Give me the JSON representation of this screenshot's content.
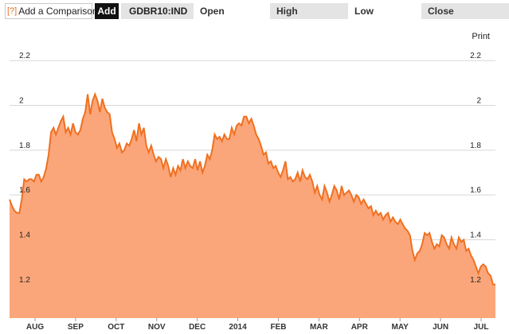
{
  "toolbar": {
    "help_glyph": "[?]",
    "comparison_label": "Add a Comparison",
    "add_label": "Add",
    "symbol": "GDBR10:IND",
    "open_label": "Open",
    "high_label": "High",
    "low_label": "Low",
    "close_label": "Close"
  },
  "print_label": "Print",
  "colors": {
    "line": "#f07020",
    "fill": "#fba67a",
    "grid": "#d8d8d8"
  },
  "chart_data": {
    "type": "area",
    "title": "",
    "xlabel": "",
    "ylabel": "",
    "ylim": [
      1.05,
      2.35
    ],
    "yticks": [
      "1.2",
      "1.4",
      "1.6",
      "1.8",
      "2",
      "2.2"
    ],
    "xticks": [
      "AUG",
      "SEP",
      "OCT",
      "NOV",
      "DEC",
      "2014",
      "FEB",
      "MAR",
      "APR",
      "MAY",
      "JUN",
      "JUL"
    ],
    "series": [
      {
        "values": [
          1.58,
          1.55,
          1.53,
          1.52,
          1.52,
          1.58,
          1.67,
          1.66,
          1.67,
          1.67,
          1.66,
          1.69,
          1.69,
          1.66,
          1.68,
          1.72,
          1.78,
          1.88,
          1.9,
          1.87,
          1.9,
          1.93,
          1.95,
          1.88,
          1.9,
          1.87,
          1.92,
          1.88,
          1.87,
          1.89,
          1.94,
          1.97,
          2.05,
          1.96,
          2.02,
          2.05,
          2.02,
          1.97,
          2.03,
          1.99,
          1.97,
          1.96,
          1.88,
          1.85,
          1.81,
          1.83,
          1.79,
          1.8,
          1.83,
          1.82,
          1.85,
          1.89,
          1.84,
          1.92,
          1.87,
          1.9,
          1.82,
          1.79,
          1.82,
          1.78,
          1.75,
          1.77,
          1.76,
          1.72,
          1.76,
          1.73,
          1.68,
          1.72,
          1.69,
          1.73,
          1.71,
          1.76,
          1.72,
          1.75,
          1.73,
          1.72,
          1.76,
          1.71,
          1.75,
          1.7,
          1.73,
          1.78,
          1.76,
          1.8,
          1.87,
          1.85,
          1.86,
          1.84,
          1.87,
          1.85,
          1.85,
          1.9,
          1.87,
          1.91,
          1.92,
          1.91,
          1.95,
          1.95,
          1.92,
          1.94,
          1.91,
          1.87,
          1.85,
          1.82,
          1.78,
          1.79,
          1.74,
          1.75,
          1.72,
          1.73,
          1.7,
          1.68,
          1.71,
          1.75,
          1.67,
          1.68,
          1.66,
          1.67,
          1.7,
          1.66,
          1.71,
          1.68,
          1.67,
          1.69,
          1.66,
          1.61,
          1.64,
          1.6,
          1.58,
          1.64,
          1.61,
          1.57,
          1.6,
          1.64,
          1.62,
          1.58,
          1.64,
          1.6,
          1.61,
          1.62,
          1.6,
          1.57,
          1.6,
          1.59,
          1.56,
          1.58,
          1.56,
          1.54,
          1.55,
          1.51,
          1.53,
          1.51,
          1.52,
          1.49,
          1.51,
          1.52,
          1.48,
          1.5,
          1.48,
          1.47,
          1.49,
          1.47,
          1.45,
          1.44,
          1.42,
          1.35,
          1.31,
          1.34,
          1.35,
          1.38,
          1.43,
          1.42,
          1.43,
          1.39,
          1.36,
          1.38,
          1.37,
          1.42,
          1.41,
          1.38,
          1.36,
          1.41,
          1.38,
          1.36,
          1.41,
          1.39,
          1.4,
          1.35,
          1.36,
          1.33,
          1.31,
          1.28,
          1.25,
          1.28,
          1.29,
          1.28,
          1.25,
          1.24,
          1.2,
          1.2
        ]
      }
    ],
    "grid": true
  }
}
